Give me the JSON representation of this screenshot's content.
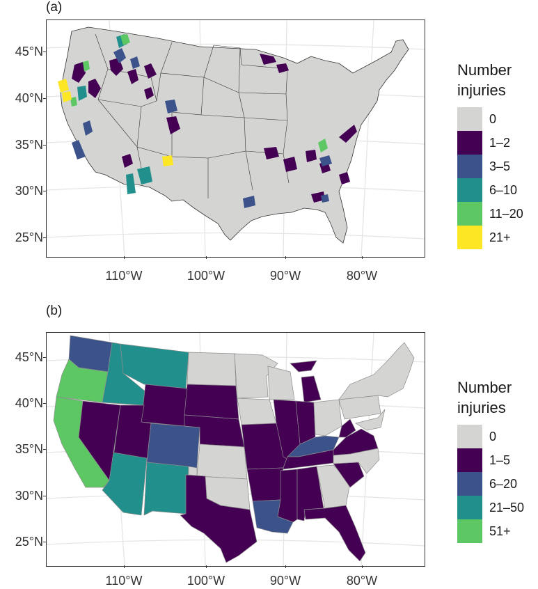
{
  "panels": [
    {
      "label": "(a)",
      "lat_labels": [
        "45°N",
        "40°N",
        "35°N",
        "30°N",
        "25°N"
      ],
      "lon_labels": [
        "110°W",
        "100°W",
        "90°W",
        "80°W"
      ],
      "legend": {
        "title_line1": "Number",
        "title_line2": "injuries",
        "items": [
          {
            "label": "0",
            "color": "#d4d5d2"
          },
          {
            "label": "1–2",
            "color": "#440154"
          },
          {
            "label": "3–5",
            "color": "#3b528b"
          },
          {
            "label": "6–10",
            "color": "#21908c"
          },
          {
            "label": "11–20",
            "color": "#5dc863"
          },
          {
            "label": "21+",
            "color": "#fde725"
          }
        ]
      }
    },
    {
      "label": "(b)",
      "lat_labels": [
        "45°N",
        "40°N",
        "35°N",
        "30°N",
        "25°N"
      ],
      "lon_labels": [
        "110°W",
        "100°W",
        "90°W",
        "80°W"
      ],
      "legend": {
        "title_line1": "Number",
        "title_line2": "injuries",
        "items": [
          {
            "label": "0",
            "color": "#d4d5d2"
          },
          {
            "label": "1–5",
            "color": "#440154"
          },
          {
            "label": "6–20",
            "color": "#3b528b"
          },
          {
            "label": "21–50",
            "color": "#21908c"
          },
          {
            "label": "51+",
            "color": "#5dc863"
          }
        ]
      }
    }
  ]
}
